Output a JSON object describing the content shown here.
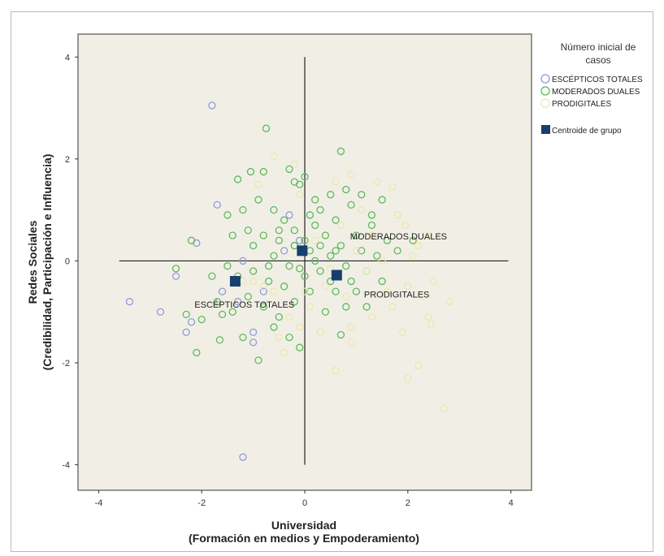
{
  "chart_data": {
    "type": "scatter",
    "xlabel": "Universidad",
    "xlabel_sub": "(Formación en medios y Empoderamiento)",
    "ylabel": "Redes Sociales",
    "ylabel_sub": "(Credibilidad, Participación e Influencia)",
    "xlim": [
      -4.4,
      4.4
    ],
    "ylim": [
      -4.5,
      4.45
    ],
    "xticks": [
      -4,
      -2,
      0,
      2,
      4
    ],
    "yticks": [
      -4,
      -2,
      0,
      2,
      4
    ],
    "grid": false,
    "legend": {
      "title": "Número inicial de casos",
      "placement": "right",
      "items": [
        {
          "label": "ESCÉPTICOS TOTALES",
          "symbol": "circle",
          "color": "#8f9bdc"
        },
        {
          "label": "MODERADOS DUALES",
          "symbol": "circle",
          "color": "#5db95d"
        },
        {
          "label": "PRODIGITALES",
          "symbol": "circle",
          "color": "#ece7b0"
        },
        {
          "label": "Centroide de grupo",
          "symbol": "square",
          "color": "#173f6e"
        }
      ]
    },
    "reference_lines": {
      "x": [
        -3.6,
        3.95
      ],
      "y": [
        -4.0,
        4.0
      ]
    },
    "series": [
      {
        "name": "ESCÉPTICOS TOTALES",
        "color": "#8f9bdc",
        "points": [
          [
            -1.8,
            3.05
          ],
          [
            -1.7,
            1.1
          ],
          [
            -2.1,
            0.35
          ],
          [
            -2.5,
            -0.3
          ],
          [
            -3.4,
            -0.8
          ],
          [
            -2.8,
            -1.0
          ],
          [
            -2.2,
            -1.2
          ],
          [
            -2.3,
            -1.4
          ],
          [
            -1.6,
            -0.6
          ],
          [
            -1.2,
            0.0
          ],
          [
            -1.0,
            -1.4
          ],
          [
            -1.0,
            -1.6
          ],
          [
            -0.8,
            -0.6
          ],
          [
            -0.3,
            0.9
          ],
          [
            -0.1,
            0.4
          ],
          [
            -1.2,
            -3.85
          ],
          [
            -0.4,
            0.2
          ],
          [
            -1.3,
            -0.8
          ],
          [
            -0.2,
            0.3
          ]
        ]
      },
      {
        "name": "MODERADOS DUALES",
        "color": "#5db95d",
        "points": [
          [
            -0.75,
            2.6
          ],
          [
            0.7,
            2.15
          ],
          [
            -1.3,
            1.6
          ],
          [
            -1.05,
            1.75
          ],
          [
            -0.8,
            1.75
          ],
          [
            -0.3,
            1.8
          ],
          [
            -0.1,
            1.5
          ],
          [
            0.0,
            1.65
          ],
          [
            -0.2,
            1.55
          ],
          [
            0.2,
            1.2
          ],
          [
            0.5,
            1.3
          ],
          [
            0.8,
            1.4
          ],
          [
            0.9,
            1.1
          ],
          [
            1.1,
            1.3
          ],
          [
            1.5,
            1.2
          ],
          [
            -0.9,
            1.2
          ],
          [
            -1.2,
            1.0
          ],
          [
            -1.5,
            0.9
          ],
          [
            -0.6,
            1.0
          ],
          [
            -0.4,
            0.8
          ],
          [
            0.1,
            0.9
          ],
          [
            0.3,
            1.0
          ],
          [
            0.6,
            0.8
          ],
          [
            -0.8,
            0.5
          ],
          [
            -1.0,
            0.3
          ],
          [
            -1.4,
            0.5
          ],
          [
            -0.5,
            0.4
          ],
          [
            -0.2,
            0.6
          ],
          [
            0.0,
            0.4
          ],
          [
            0.4,
            0.5
          ],
          [
            0.7,
            0.3
          ],
          [
            1.0,
            0.5
          ],
          [
            1.3,
            0.7
          ],
          [
            1.6,
            0.4
          ],
          [
            1.8,
            0.2
          ],
          [
            2.1,
            0.4
          ],
          [
            -0.6,
            0.1
          ],
          [
            -0.3,
            -0.1
          ],
          [
            0.2,
            0.0
          ],
          [
            0.5,
            0.1
          ],
          [
            0.8,
            -0.1
          ],
          [
            1.1,
            0.2
          ],
          [
            1.4,
            0.1
          ],
          [
            -2.5,
            -0.15
          ],
          [
            -2.2,
            0.4
          ],
          [
            -1.8,
            -0.3
          ],
          [
            -1.5,
            -0.1
          ],
          [
            -1.0,
            -0.2
          ],
          [
            -0.7,
            -0.4
          ],
          [
            -0.4,
            -0.5
          ],
          [
            0.0,
            -0.3
          ],
          [
            0.3,
            -0.2
          ],
          [
            0.6,
            -0.6
          ],
          [
            0.9,
            -0.4
          ],
          [
            1.2,
            -0.2
          ],
          [
            1.5,
            -0.4
          ],
          [
            -2.3,
            -1.05
          ],
          [
            -2.0,
            -1.15
          ],
          [
            -1.7,
            -0.8
          ],
          [
            -1.4,
            -1.0
          ],
          [
            -1.1,
            -0.7
          ],
          [
            -0.8,
            -0.9
          ],
          [
            -0.5,
            -1.1
          ],
          [
            -0.2,
            -0.8
          ],
          [
            0.1,
            -0.6
          ],
          [
            0.4,
            -1.0
          ],
          [
            0.8,
            -0.9
          ],
          [
            1.0,
            -0.6
          ],
          [
            -2.1,
            -1.8
          ],
          [
            -1.65,
            -1.55
          ],
          [
            -1.2,
            -1.5
          ],
          [
            -0.9,
            -1.95
          ],
          [
            -0.6,
            -1.3
          ],
          [
            -0.3,
            -1.5
          ],
          [
            -0.1,
            -1.7
          ],
          [
            0.7,
            -1.45
          ],
          [
            1.2,
            -0.9
          ],
          [
            -1.6,
            -1.05
          ],
          [
            -0.2,
            0.3
          ],
          [
            0.3,
            0.3
          ],
          [
            -0.1,
            -0.15
          ],
          [
            0.1,
            0.2
          ],
          [
            0.6,
            0.2
          ],
          [
            -0.5,
            0.6
          ],
          [
            1.3,
            0.9
          ],
          [
            -1.1,
            0.6
          ],
          [
            -0.7,
            -0.1
          ],
          [
            0.5,
            -0.4
          ],
          [
            0.2,
            0.7
          ],
          [
            -1.3,
            -0.3
          ]
        ]
      },
      {
        "name": "PRODIGITALES",
        "color": "#ece7b0",
        "points": [
          [
            -0.2,
            1.9
          ],
          [
            -0.6,
            2.05
          ],
          [
            1.4,
            1.55
          ],
          [
            1.7,
            1.45
          ],
          [
            1.95,
            0.7
          ],
          [
            2.2,
            0.3
          ],
          [
            2.4,
            0.5
          ],
          [
            1.1,
            1.0
          ],
          [
            0.6,
            1.55
          ],
          [
            0.9,
            1.7
          ],
          [
            1.8,
            0.9
          ],
          [
            2.0,
            -0.5
          ],
          [
            2.3,
            -0.7
          ],
          [
            2.5,
            -0.4
          ],
          [
            2.8,
            -0.8
          ],
          [
            2.45,
            -1.25
          ],
          [
            2.4,
            -1.1
          ],
          [
            1.9,
            -1.4
          ],
          [
            2.0,
            -2.3
          ],
          [
            2.2,
            -2.05
          ],
          [
            2.7,
            -2.9
          ],
          [
            0.6,
            -2.15
          ],
          [
            0.9,
            -1.6
          ],
          [
            1.3,
            -1.1
          ],
          [
            1.6,
            -0.6
          ],
          [
            1.2,
            -0.2
          ],
          [
            0.8,
            -0.7
          ],
          [
            0.4,
            -0.5
          ],
          [
            0.1,
            -0.9
          ],
          [
            -0.3,
            -1.1
          ],
          [
            -0.5,
            -1.5
          ],
          [
            -0.4,
            -1.8
          ],
          [
            -0.8,
            -0.5
          ],
          [
            -0.6,
            -0.6
          ],
          [
            0.2,
            0.4
          ],
          [
            0.5,
            -0.15
          ],
          [
            0.7,
            0.7
          ],
          [
            0.3,
            -1.4
          ],
          [
            -0.1,
            -1.3
          ],
          [
            1.5,
            0.0
          ],
          [
            -1.0,
            -0.4
          ],
          [
            -0.9,
            1.5
          ],
          [
            -0.1,
            1.3
          ],
          [
            1.0,
            0.2
          ],
          [
            1.7,
            -0.9
          ],
          [
            0.0,
            -0.6
          ],
          [
            -1.2,
            -0.4
          ],
          [
            0.9,
            -1.3
          ],
          [
            2.1,
            0.1
          ],
          [
            1.3,
            0.5
          ]
        ]
      },
      {
        "name": "Centroide de grupo",
        "color": "#173f6e",
        "points": [
          [
            -1.35,
            -0.4
          ],
          [
            -0.05,
            0.2
          ],
          [
            0.62,
            -0.28
          ]
        ]
      }
    ],
    "annotations": [
      {
        "text": "MODERADOS DUALES",
        "x": 0.88,
        "y": 0.42
      },
      {
        "text": "PRODIGITALES",
        "x": 1.15,
        "y": -0.72
      },
      {
        "text": "ESCÉPTICOS TOTALES",
        "x": -2.14,
        "y": -0.92
      }
    ]
  }
}
